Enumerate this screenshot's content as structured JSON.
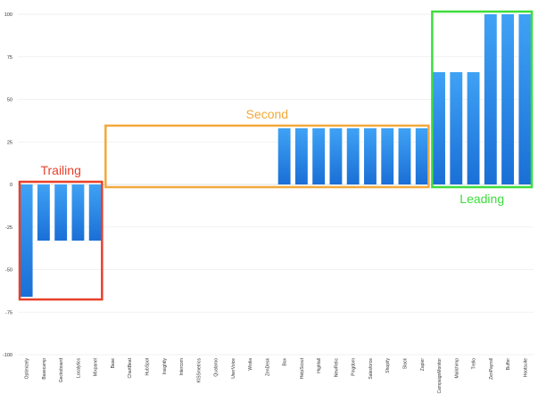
{
  "chart_data": {
    "type": "bar",
    "title": "",
    "xlabel": "",
    "ylabel": "",
    "ylim": [
      -100,
      100
    ],
    "yticks": [
      -100,
      -75,
      -50,
      -25,
      0,
      25,
      50,
      75,
      100
    ],
    "grid": true,
    "categories": [
      "Optimizely",
      "Basecamp",
      "Geckoboard",
      "Localytics",
      "Mixpanel",
      "Base",
      "ChartBeat",
      "HubSpot",
      "Insightly",
      "Intercom",
      "KISSmetrics",
      "Qualaroo",
      "UserVoice",
      "Wistia",
      "ZenDesk",
      "Box",
      "HelpScout",
      "Highfall",
      "NewRelic",
      "Pingdom",
      "Salesforce",
      "Shopify",
      "Slack",
      "Zapier",
      "CampaignMonitor",
      "Mailchimp",
      "Trello",
      "ZenPayroll",
      "Buffer",
      "Hootsuite"
    ],
    "values": [
      -66,
      -33,
      -33,
      -33,
      -33,
      0,
      0,
      0,
      0,
      0,
      0,
      0,
      0,
      0,
      0,
      33,
      33,
      33,
      33,
      33,
      33,
      33,
      33,
      33,
      66,
      66,
      66,
      100,
      100,
      100
    ],
    "bar_color": "#2f8ae5",
    "annotations": [
      {
        "label": "Trailing",
        "color": "#e8402a",
        "from_index": 0,
        "to_index": 4
      },
      {
        "label": "Second",
        "color": "#f2a93b",
        "from_index": 5,
        "to_index": 23
      },
      {
        "label": "Leading",
        "color": "#3ddc3d",
        "from_index": 24,
        "to_index": 29
      }
    ]
  }
}
